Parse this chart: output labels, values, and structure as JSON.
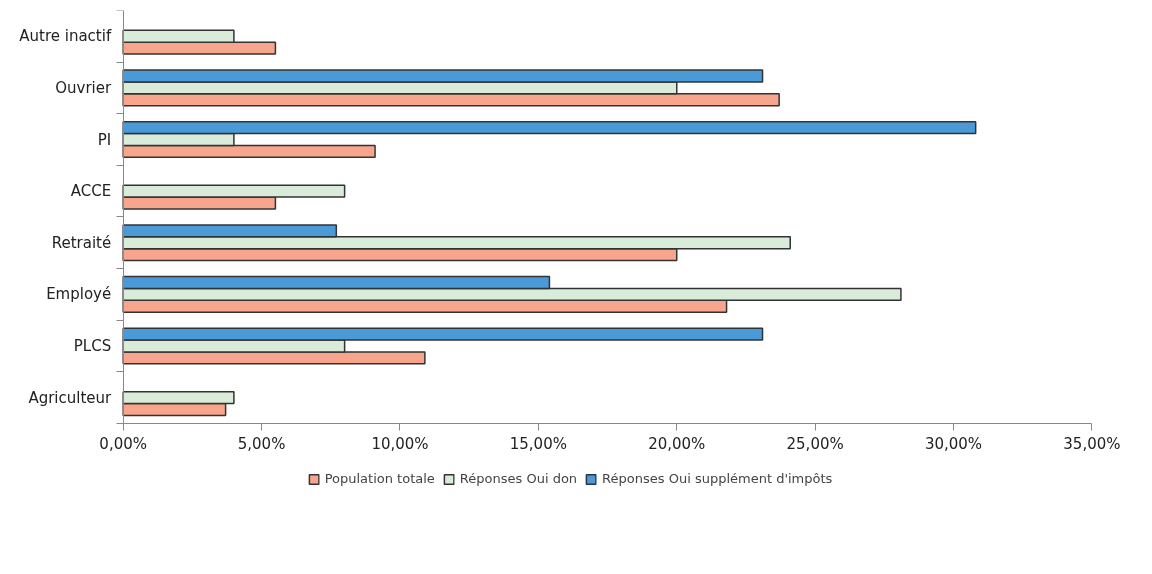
{
  "chart_data": {
    "type": "bar",
    "orientation": "horizontal",
    "categories": [
      "Autre inactif",
      "Ouvrier",
      "PI",
      "ACCE",
      "Retraité",
      "Employé",
      "PLCS",
      "Agriculteur"
    ],
    "series": [
      {
        "name": "Population totale",
        "color": "#f7a58c",
        "values": [
          5.5,
          23.7,
          9.1,
          5.5,
          20.0,
          21.8,
          10.9,
          3.7
        ]
      },
      {
        "name": "Réponses Oui don",
        "color": "#d9ecd9",
        "values": [
          4.0,
          20.0,
          4.0,
          8.0,
          24.1,
          28.1,
          8.0,
          4.0
        ]
      },
      {
        "name": "Réponses Oui supplément d'impôts",
        "color": "#4a9ad8",
        "values": [
          null,
          23.1,
          30.8,
          null,
          7.7,
          15.4,
          23.1,
          null
        ]
      }
    ],
    "xlim": [
      0,
      35
    ],
    "xticks": [
      {
        "value": 0,
        "label": "0,00%"
      },
      {
        "value": 5,
        "label": "5,00%"
      },
      {
        "value": 10,
        "label": "10,00%"
      },
      {
        "value": 15,
        "label": "15,00%"
      },
      {
        "value": 20,
        "label": "20,00%"
      },
      {
        "value": 25,
        "label": "25,00%"
      },
      {
        "value": 30,
        "label": "30,00%"
      },
      {
        "value": 35,
        "label": "35,00%"
      }
    ],
    "grid": false,
    "legend": "bottom"
  }
}
